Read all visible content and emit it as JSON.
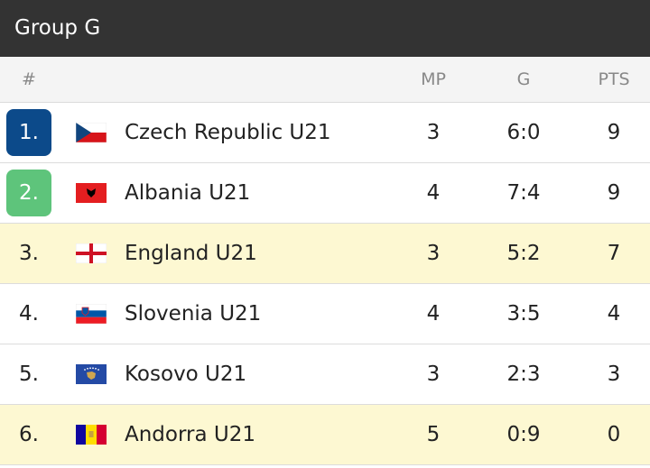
{
  "header": {
    "title": "Group G"
  },
  "table": {
    "columns": [
      "#",
      "MP",
      "G",
      "PTS"
    ],
    "rows": [
      [
        "1.",
        "Czech Republic U21",
        3,
        "6:0",
        9
      ],
      [
        "2.",
        "Albania U21",
        4,
        "7:4",
        9
      ],
      [
        "3.",
        "England U21",
        3,
        "5:2",
        7
      ],
      [
        "4.",
        "Slovenia U21",
        4,
        "3:5",
        4
      ],
      [
        "5.",
        "Kosovo U21",
        3,
        "2:3",
        3
      ],
      [
        "6.",
        "Andorra U21",
        5,
        "0:9",
        0
      ]
    ]
  }
}
